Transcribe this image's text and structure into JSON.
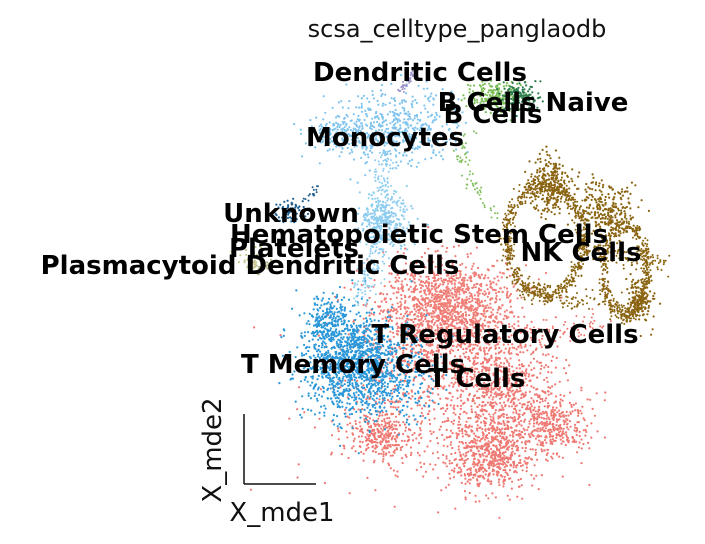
{
  "chart_data": {
    "type": "scatter",
    "title": "scsa_celltype_panglaodb",
    "xlabel": "X_mde1",
    "ylabel": "X_mde2",
    "grid": false,
    "legend": "on data",
    "clusters": [
      {
        "name": "Dendritic Cells",
        "color": "#9f93c9"
      },
      {
        "name": "B Cells Naive",
        "color": "#2e7d4f"
      },
      {
        "name": "B Cells",
        "color": "#7fbf5a"
      },
      {
        "name": "Monocytes",
        "color": "#7fc4ee"
      },
      {
        "name": "Unknown",
        "color": "#1f5f8f"
      },
      {
        "name": "Hematopoietic Stem Cells",
        "color": "#8ecdf0"
      },
      {
        "name": "Platelets",
        "color": "#c9c98f"
      },
      {
        "name": "NK Cells",
        "color": "#8a6410"
      },
      {
        "name": "Plasmacytoid Dendritic Cells",
        "color": "#b5b58a"
      },
      {
        "name": "T Regulatory Cells",
        "color": "#f08078"
      },
      {
        "name": "T Memory Cells",
        "color": "#2a97d8"
      },
      {
        "name": "T Cells",
        "color": "#ee7872"
      }
    ]
  }
}
